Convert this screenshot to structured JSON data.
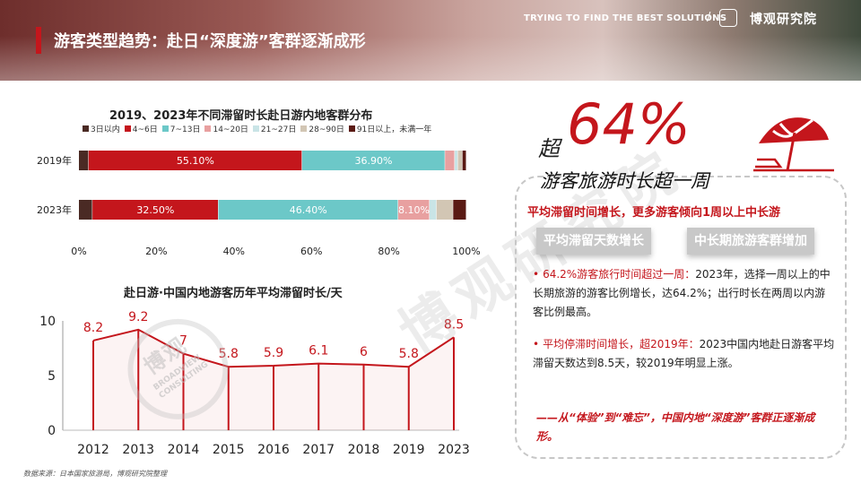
{
  "header": {
    "title": "游客类型趋势：赴日“深度游”客群逐渐成形",
    "slogan": "TRYING TO FIND THE BEST SOLUTIONS",
    "separator": "/",
    "brand": "博观研究院"
  },
  "chart_data": [
    {
      "type": "bar",
      "orientation": "horizontal-stacked-percent",
      "title": "2019、2023年不同滞留时长赴日游内地客群分布",
      "categories": [
        "2019年",
        "2023年"
      ],
      "series": [
        {
          "name": "3日以内",
          "color": "#4a2a24",
          "values": [
            2.5,
            3.5
          ]
        },
        {
          "name": "4~6日",
          "color": "#c4161c",
          "values": [
            55.1,
            32.5
          ]
        },
        {
          "name": "7~13日",
          "color": "#6cc8c8",
          "values": [
            36.9,
            46.4
          ]
        },
        {
          "name": "14~20日",
          "color": "#e8a0a0",
          "values": [
            2.5,
            8.1
          ]
        },
        {
          "name": "21~27日",
          "color": "#c9e4e6",
          "values": [
            0.8,
            1.8
          ]
        },
        {
          "name": "28~90日",
          "color": "#d2c6b4",
          "values": [
            1.2,
            4.3
          ]
        },
        {
          "name": "91日以上，未满一年",
          "color": "#5a1a14",
          "values": [
            1.0,
            3.4
          ]
        }
      ],
      "data_labels": [
        {
          "category": "2019年",
          "series": "4~6日",
          "text": "55.10%"
        },
        {
          "category": "2019年",
          "series": "7~13日",
          "text": "36.90%"
        },
        {
          "category": "2023年",
          "series": "4~6日",
          "text": "32.50%"
        },
        {
          "category": "2023年",
          "series": "7~13日",
          "text": "46.40%"
        },
        {
          "category": "2023年",
          "series": "14~20日",
          "text": "8.10%"
        }
      ],
      "xlim": [
        0,
        100
      ],
      "x_ticks": [
        "0%",
        "20%",
        "40%",
        "60%",
        "80%",
        "100%"
      ],
      "legend_position": "top",
      "grid": false
    },
    {
      "type": "area",
      "title": "赴日游·中国内地游客历年平均滞留时长/天",
      "categories": [
        "2012",
        "2013",
        "2014",
        "2015",
        "2016",
        "2017",
        "2018",
        "2019",
        "2023"
      ],
      "values": [
        8.2,
        9.2,
        7,
        5.8,
        5.9,
        6.1,
        6,
        5.8,
        8.5
      ],
      "value_labels": [
        "8.2",
        "9.2",
        "7",
        "5.8",
        "5.9",
        "6.1",
        "6",
        "5.8",
        "8.5"
      ],
      "ylim": [
        0,
        10
      ],
      "y_ticks": [
        "0",
        "5",
        "10"
      ],
      "color": "#c4161c",
      "grid": false
    }
  ],
  "panel": {
    "big_prefix": "超",
    "big_number": "64%",
    "subhead": "游客旅游时长超一周",
    "summary": "平均滞留时间增长，更多游客倾向1周以上中长游",
    "tag1": "平均滞留天数增长",
    "tag2": "中长期旅游客群增加",
    "bullet1_bullet": "•",
    "bullet1_head": "64.2%游客旅行时间超过一周：",
    "bullet1_body": "2023年，选择一周以上的中长期旅游的游客比例增长，达64.2%；出行时长在两周以内游客比例最高。",
    "bullet2_bullet": "•",
    "bullet2_head": "平均停滞时间增长，超2019年：",
    "bullet2_body": "2023中国内地赴日游客平均滞留天数达到8.5天，较2019年明显上涨。",
    "conclusion": "——从“体验”到“难忘”，中国内地“深度游”客群正逐渐成形。"
  },
  "watermark": {
    "text": "博观研究院",
    "stamp_cn": "博观",
    "stamp_en_1": "BROADVIEW",
    "stamp_en_2": "CONSULTING"
  },
  "source": "数据来源：日本国家旅游局，博观研究院整理"
}
